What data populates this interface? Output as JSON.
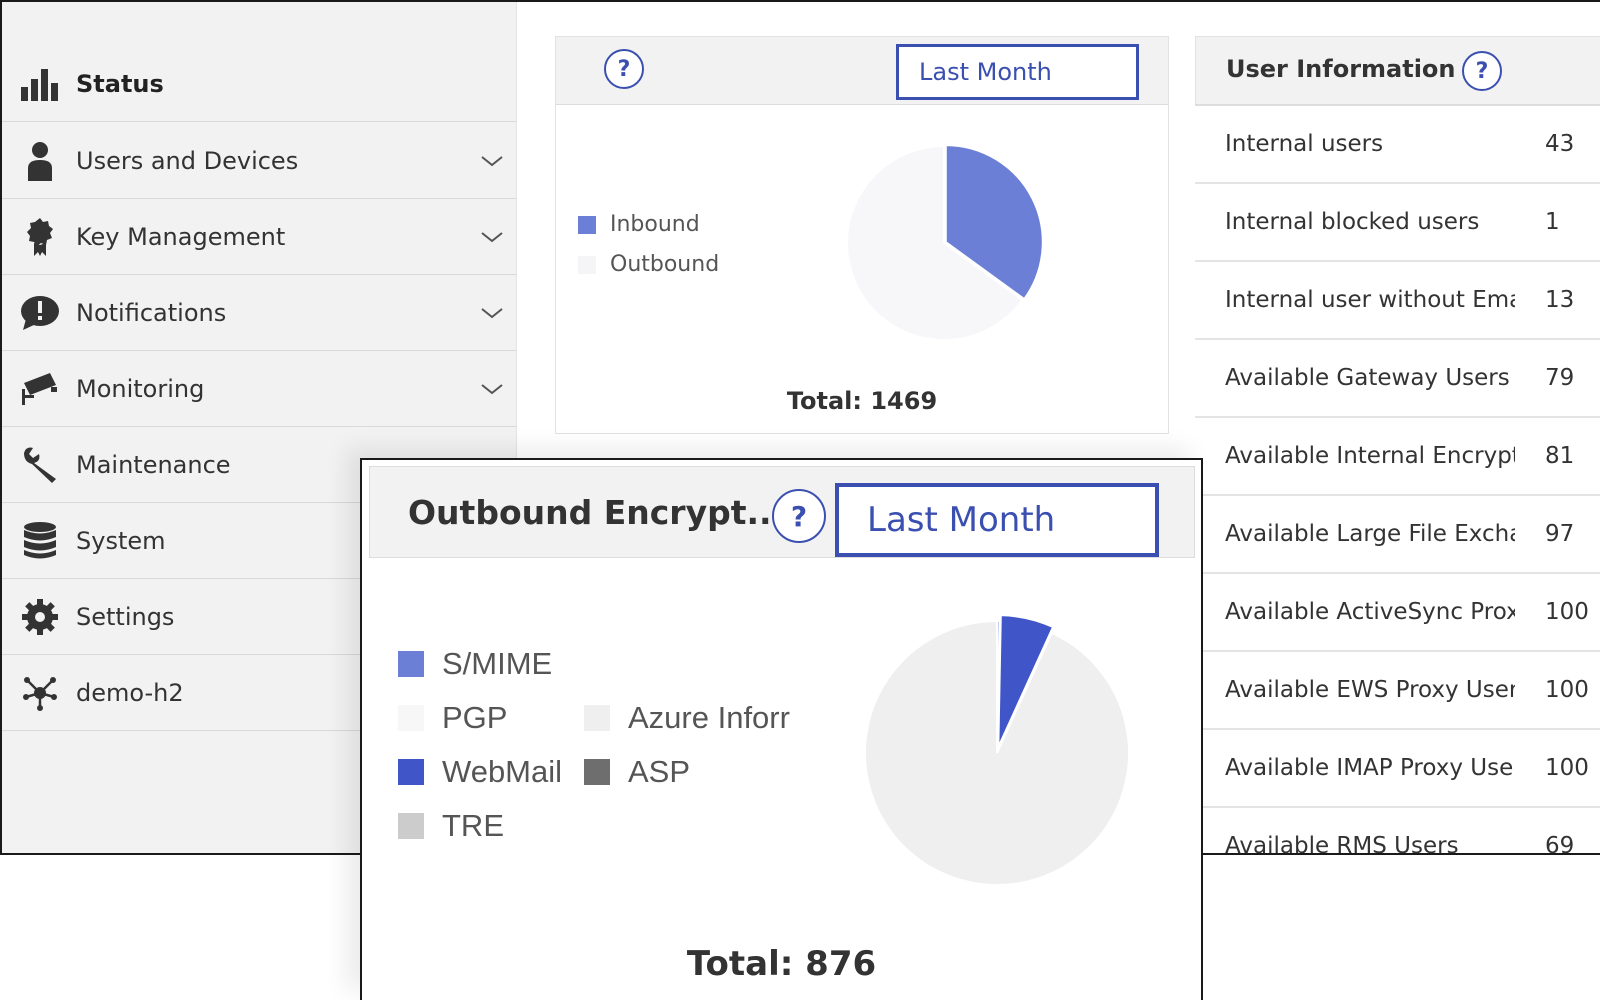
{
  "sidebar": {
    "items": [
      {
        "label": "Status",
        "icon": "bar-chart-icon",
        "expandable": false,
        "active": true
      },
      {
        "label": "Users and Devices",
        "icon": "user-icon",
        "expandable": true
      },
      {
        "label": "Key Management",
        "icon": "certificate-icon",
        "expandable": true
      },
      {
        "label": "Notifications",
        "icon": "alert-bubble-icon",
        "expandable": true
      },
      {
        "label": "Monitoring",
        "icon": "camera-icon",
        "expandable": true
      },
      {
        "label": "Maintenance",
        "icon": "wrench-icon",
        "expandable": false
      },
      {
        "label": "System",
        "icon": "database-icon",
        "expandable": false
      },
      {
        "label": "Settings",
        "icon": "gear-icon",
        "expandable": false
      },
      {
        "label": "demo-h2",
        "icon": "cluster-icon",
        "expandable": false
      }
    ]
  },
  "traffic_card": {
    "period": "Last Month",
    "help": "?",
    "total_label": "Total: 1469",
    "colors": {
      "inbound": "#6b7fd6",
      "outbound": "#f7f7fa"
    }
  },
  "user_info": {
    "title": "User Information",
    "help": "?",
    "rows": [
      {
        "label": "Internal users",
        "value": "43"
      },
      {
        "label": "Internal blocked users",
        "value": "1"
      },
      {
        "label": "Internal user without Ema",
        "value": "13"
      },
      {
        "label": "Available Gateway Users",
        "value": "79"
      },
      {
        "label": "Available Internal Encrypt",
        "value": "81"
      },
      {
        "label": "Available Large File Excha",
        "value": "97"
      },
      {
        "label": "Available ActiveSync Prox",
        "value": "100"
      },
      {
        "label": "Available EWS Proxy User",
        "value": "100"
      },
      {
        "label": "Available IMAP Proxy Use",
        "value": "100"
      },
      {
        "label": "Available RMS Users",
        "value": "69"
      }
    ]
  },
  "encryption_card": {
    "title": "Outbound Encrypt...",
    "help": "?",
    "period": "Last Month",
    "total_label": "Total: 876",
    "colors": {
      "smime": "#6b7fd6",
      "pgp": "#f7f7f7",
      "webmail": "#3f55c8",
      "tre": "#cccccc",
      "azure": "#efefef",
      "asp": "#6e6e6e"
    }
  },
  "chart_data": [
    {
      "type": "pie",
      "categories": [
        "Inbound",
        "Outbound"
      ],
      "values": [
        35,
        65
      ],
      "value_unit": "percent of total",
      "total": 1469,
      "title": "",
      "legend": "left"
    },
    {
      "type": "pie",
      "categories": [
        "S/MIME",
        "PGP",
        "WebMail",
        "TRE",
        "Azure Inforr",
        "ASP"
      ],
      "values": [
        0.3,
        0,
        6.5,
        0,
        93.2,
        0
      ],
      "value_unit": "percent of total",
      "total": 876,
      "title": "Outbound Encrypt...",
      "legend": "left"
    }
  ]
}
